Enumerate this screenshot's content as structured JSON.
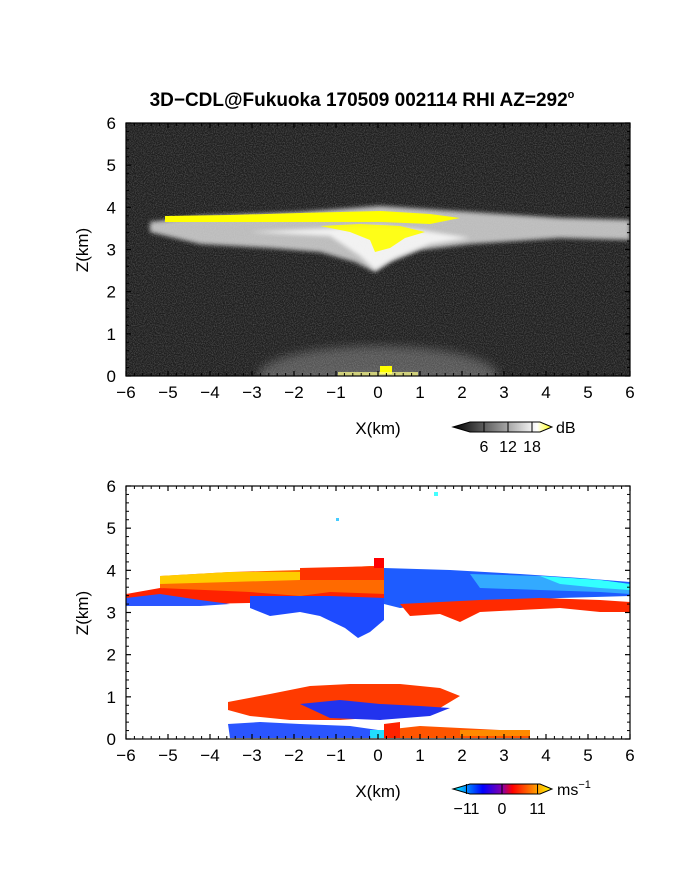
{
  "title": "3D−CDL@Fukuoka 170509 002114 RHI AZ=292",
  "title_degree": "o",
  "chart_data": [
    {
      "type": "heatmap",
      "panel": "reflectivity",
      "xlabel": "X(km)",
      "ylabel": "Z(km)",
      "xlim": [
        -6,
        6
      ],
      "ylim": [
        0,
        6
      ],
      "xticks": [
        "−6",
        "−5",
        "−4",
        "−3",
        "−2",
        "−1",
        "0",
        "1",
        "2",
        "3",
        "4",
        "5",
        "6"
      ],
      "yticks": [
        "0",
        "1",
        "2",
        "3",
        "4",
        "5",
        "6"
      ],
      "colorbar": {
        "unit": "dB",
        "ticks": [
          "6",
          "12",
          "18"
        ],
        "range": [
          0,
          21
        ],
        "colors": [
          "#000000",
          "#ffffff",
          "#ffff00"
        ]
      },
      "features": [
        {
          "name": "cloud layer",
          "x": [
            -5.2,
            6.0
          ],
          "z": [
            2.6,
            4.0
          ],
          "level": "gray-white"
        },
        {
          "name": "strong echo",
          "x": [
            -5.0,
            3.9
          ],
          "z": [
            3.0,
            3.8
          ],
          "level": "yellow"
        },
        {
          "name": "boundary layer",
          "x": [
            -3.0,
            3.0
          ],
          "z": [
            0.0,
            1.4
          ],
          "level": "light gray"
        }
      ]
    },
    {
      "type": "heatmap",
      "panel": "doppler-velocity",
      "xlabel": "X(km)",
      "ylabel": "Z(km)",
      "xlim": [
        -6,
        6
      ],
      "ylim": [
        0,
        6
      ],
      "xticks": [
        "−6",
        "−5",
        "−4",
        "−3",
        "−2",
        "−1",
        "0",
        "1",
        "2",
        "3",
        "4",
        "5",
        "6"
      ],
      "yticks": [
        "0",
        "1",
        "2",
        "3",
        "4",
        "5",
        "6"
      ],
      "colorbar": {
        "unit": "ms",
        "unit_exp": "−1",
        "ticks": [
          "−11",
          "0",
          "11"
        ],
        "range": [
          -13,
          13
        ],
        "colors": [
          "#00ffff",
          "#0000ff",
          "#ff0000",
          "#ffff00"
        ]
      },
      "features": [
        {
          "name": "cloud layer left",
          "x": [
            -6.0,
            0.2
          ],
          "z": [
            3.0,
            4.2
          ],
          "velocity": "positive"
        },
        {
          "name": "cloud layer right",
          "x": [
            0.2,
            6.0
          ],
          "z": [
            2.9,
            4.0
          ],
          "velocity": "negative"
        },
        {
          "name": "boundary layer upper",
          "x": [
            -2.8,
            2.2
          ],
          "z": [
            0.5,
            1.3
          ],
          "velocity": "positive"
        },
        {
          "name": "boundary layer lower left",
          "x": [
            -3.5,
            0.0
          ],
          "z": [
            0.0,
            0.5
          ],
          "velocity": "negative"
        },
        {
          "name": "boundary layer lower right",
          "x": [
            0.0,
            3.7
          ],
          "z": [
            0.0,
            0.3
          ],
          "velocity": "positive"
        }
      ]
    }
  ]
}
